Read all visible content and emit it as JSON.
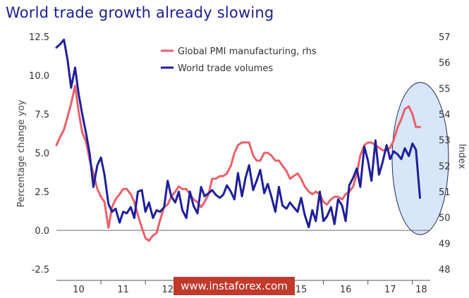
{
  "chart_data": {
    "type": "line",
    "title": "World trade growth already slowing",
    "ylabel": "Percentage change yoy",
    "y2label": "Index",
    "ylim": [
      -2.5,
      12.5
    ],
    "y2lim": [
      48,
      57
    ],
    "yticks": [
      "12.5",
      "10.0",
      "7.5",
      "5.0",
      "2.5",
      "0.0",
      "-2.5"
    ],
    "y2ticks": [
      "57",
      "56",
      "55",
      "54",
      "53",
      "52",
      "51",
      "50",
      "49",
      "48"
    ],
    "xticks": [
      "10",
      "11",
      "12",
      "13",
      "14",
      "15",
      "16",
      "17",
      "18"
    ],
    "xlim": [
      2010.0,
      2018.4
    ],
    "grid": false,
    "legend_position": "top-center",
    "series": [
      {
        "name": "Global PMI manufacturing, rhs",
        "axis": "right",
        "color": "#e8606a",
        "x": [
          2010.0,
          2010.08,
          2010.17,
          2010.25,
          2010.33,
          2010.42,
          2010.5,
          2010.58,
          2010.67,
          2010.75,
          2010.83,
          2010.92,
          2011.0,
          2011.08,
          2011.17,
          2011.25,
          2011.33,
          2011.42,
          2011.5,
          2011.58,
          2011.67,
          2011.75,
          2011.83,
          2011.92,
          2012.0,
          2012.08,
          2012.17,
          2012.25,
          2012.33,
          2012.42,
          2012.5,
          2012.58,
          2012.67,
          2012.75,
          2012.83,
          2012.92,
          2013.0,
          2013.08,
          2013.17,
          2013.25,
          2013.33,
          2013.42,
          2013.5,
          2013.58,
          2013.67,
          2013.75,
          2013.83,
          2013.92,
          2014.0,
          2014.08,
          2014.17,
          2014.25,
          2014.33,
          2014.42,
          2014.5,
          2014.58,
          2014.67,
          2014.75,
          2014.83,
          2014.92,
          2015.0,
          2015.08,
          2015.17,
          2015.25,
          2015.33,
          2015.42,
          2015.5,
          2015.58,
          2015.67,
          2015.75,
          2015.83,
          2015.92,
          2016.0,
          2016.08,
          2016.17,
          2016.25,
          2016.33,
          2016.42,
          2016.5,
          2016.58,
          2016.67,
          2016.75,
          2016.83,
          2016.92,
          2017.0,
          2017.08,
          2017.17,
          2017.25,
          2017.33,
          2017.42,
          2017.5,
          2017.58,
          2017.67,
          2017.75,
          2017.83,
          2017.92,
          2018.0,
          2018.08,
          2018.17
        ],
        "values": [
          52.8,
          53.1,
          53.4,
          53.9,
          54.4,
          55.1,
          54.1,
          53.3,
          52.9,
          52.2,
          51.7,
          51.1,
          50.8,
          50.6,
          49.6,
          50.4,
          50.7,
          50.9,
          51.1,
          51.1,
          50.9,
          50.6,
          50.1,
          49.6,
          49.2,
          49.1,
          49.3,
          49.4,
          49.9,
          50.4,
          50.5,
          50.8,
          51.0,
          51.2,
          51.1,
          51.1,
          50.9,
          50.7,
          50.6,
          50.4,
          50.6,
          50.9,
          51.5,
          51.5,
          51.6,
          51.6,
          51.7,
          52.0,
          52.5,
          52.8,
          52.9,
          52.9,
          52.9,
          52.4,
          52.2,
          52.2,
          52.5,
          52.5,
          52.4,
          52.2,
          52.2,
          52.0,
          51.8,
          51.5,
          51.6,
          51.7,
          51.5,
          51.2,
          51.0,
          50.9,
          51.0,
          50.9,
          50.6,
          50.5,
          50.7,
          50.8,
          50.8,
          50.7,
          50.9,
          51.0,
          51.2,
          51.7,
          52.4,
          52.8,
          52.9,
          52.9,
          52.8,
          52.7,
          52.6,
          52.6,
          52.7,
          53.0,
          53.5,
          53.8,
          54.2,
          54.3,
          54.0,
          53.5,
          53.5
        ]
      },
      {
        "name": "World trade volumes",
        "axis": "left",
        "color": "#1f1e9b",
        "x": [
          2010.0,
          2010.08,
          2010.17,
          2010.25,
          2010.33,
          2010.42,
          2010.5,
          2010.58,
          2010.67,
          2010.75,
          2010.83,
          2010.92,
          2011.0,
          2011.08,
          2011.17,
          2011.25,
          2011.33,
          2011.42,
          2011.5,
          2011.58,
          2011.67,
          2011.75,
          2011.83,
          2011.92,
          2012.0,
          2012.08,
          2012.17,
          2012.25,
          2012.33,
          2012.42,
          2012.5,
          2012.58,
          2012.67,
          2012.75,
          2012.83,
          2012.92,
          2013.0,
          2013.08,
          2013.17,
          2013.25,
          2013.33,
          2013.42,
          2013.5,
          2013.58,
          2013.67,
          2013.75,
          2013.83,
          2013.92,
          2014.0,
          2014.08,
          2014.17,
          2014.25,
          2014.33,
          2014.42,
          2014.5,
          2014.58,
          2014.67,
          2014.75,
          2014.83,
          2014.92,
          2015.0,
          2015.08,
          2015.17,
          2015.25,
          2015.33,
          2015.42,
          2015.5,
          2015.58,
          2015.67,
          2015.75,
          2015.83,
          2015.92,
          2016.0,
          2016.08,
          2016.17,
          2016.25,
          2016.33,
          2016.42,
          2016.5,
          2016.58,
          2016.67,
          2016.75,
          2016.83,
          2016.92,
          2017.0,
          2017.08,
          2017.17,
          2017.25,
          2017.33,
          2017.42,
          2017.5,
          2017.58,
          2017.67,
          2017.75,
          2017.83,
          2017.92,
          2018.0,
          2018.08,
          2018.17
        ],
        "values": [
          11.8,
          12.0,
          12.3,
          11.0,
          9.2,
          10.5,
          8.8,
          7.5,
          6.2,
          4.9,
          2.8,
          4.2,
          4.7,
          3.6,
          1.7,
          1.2,
          1.4,
          0.5,
          1.2,
          1.1,
          1.5,
          0.8,
          2.5,
          2.6,
          1.2,
          1.8,
          0.8,
          1.3,
          1.2,
          1.5,
          3.2,
          2.2,
          1.8,
          2.5,
          1.3,
          0.8,
          2.5,
          1.6,
          1.1,
          2.8,
          2.2,
          2.4,
          2.6,
          2.3,
          2.1,
          2.3,
          2.9,
          2.5,
          2.0,
          3.7,
          2.2,
          3.4,
          4.2,
          2.6,
          3.2,
          3.9,
          2.4,
          3.0,
          2.2,
          1.2,
          2.8,
          1.6,
          1.4,
          1.8,
          1.5,
          1.2,
          2.1,
          1.0,
          0.2,
          1.3,
          0.6,
          2.5,
          0.6,
          0.9,
          1.5,
          0.4,
          2.0,
          1.6,
          0.6,
          2.9,
          3.4,
          4.0,
          2.8,
          5.4,
          4.5,
          3.2,
          5.8,
          3.6,
          4.4,
          5.5,
          4.6,
          5.1,
          4.9,
          4.6,
          5.3,
          4.8,
          5.6,
          5.2,
          2.1
        ]
      }
    ]
  },
  "watermark": {
    "text": "www.instaforex.com",
    "color": "#c0392b"
  },
  "highlight_color": "#d7e6f8"
}
